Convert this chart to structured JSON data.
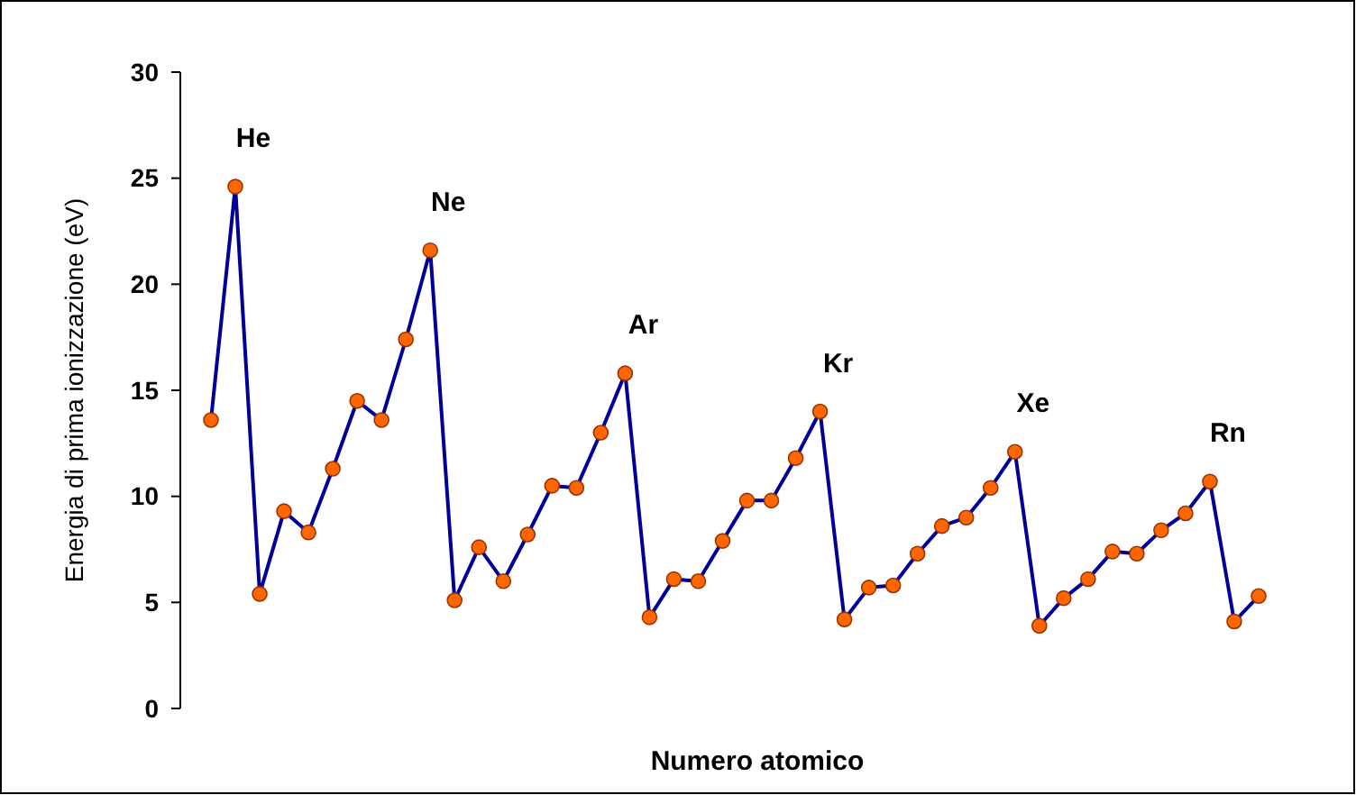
{
  "chart_data": {
    "type": "line",
    "xlabel": "Numero atomico",
    "ylabel": "Energia di prima ionizzazione (eV)",
    "categories": [
      null,
      null,
      null,
      null,
      null,
      null,
      null,
      null,
      null,
      null,
      null,
      null,
      null,
      null,
      null,
      null,
      null,
      null,
      null,
      null,
      null,
      null,
      null,
      null,
      null,
      null,
      null,
      null,
      null,
      null,
      null,
      null,
      null,
      null,
      null,
      null,
      null,
      null,
      null,
      null,
      null,
      null,
      null,
      null
    ],
    "series": [
      {
        "color": "#000099",
        "values": [
          13.6,
          24.6,
          5.4,
          9.3,
          8.3,
          11.3,
          14.5,
          13.6,
          17.4,
          21.6,
          5.1,
          7.6,
          6.0,
          8.2,
          10.5,
          10.4,
          13.0,
          15.8,
          4.3,
          6.1,
          6.0,
          7.9,
          9.8,
          9.8,
          11.8,
          14.0,
          4.2,
          5.7,
          5.8,
          7.3,
          8.6,
          9.0,
          10.4,
          12.1,
          3.9,
          5.2,
          6.1,
          7.4,
          7.3,
          8.4,
          9.2,
          10.7,
          4.1,
          5.3
        ]
      }
    ],
    "marker": "circle",
    "ylim": [
      0,
      30
    ],
    "yticks": [
      0,
      5,
      10,
      15,
      20,
      25,
      30
    ],
    "tick_labels": "y",
    "grid": false,
    "annotations": [
      "He",
      "Ne",
      "Ar",
      "Kr",
      "Xe",
      "Rn"
    ]
  }
}
